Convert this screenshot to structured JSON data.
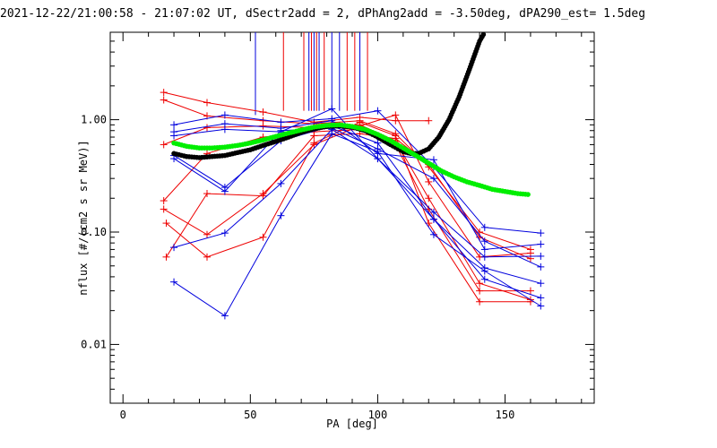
{
  "chart_data": {
    "type": "line",
    "title": "2021-12-22/21:00:58 - 21:07:02 UT, dSectr2add = 2, dPhAng2add = -3.50deg, dPA290_est=   1.5deg",
    "xlabel": "PA [deg]",
    "ylabel": "nflux [#/(cm2 s sr MeV)]",
    "xlim": [
      -5,
      185
    ],
    "ylim": [
      0.003,
      6
    ],
    "yscale": "log",
    "x_ticks": [
      0,
      50,
      100,
      150
    ],
    "x_tick_labels": [
      "0",
      "50",
      "100",
      "150"
    ],
    "y_ticks": [
      0.01,
      0.1,
      1.0
    ],
    "y_tick_labels": [
      "0.01",
      "0.10",
      "1.00"
    ],
    "grid": false,
    "colors": {
      "red": "#ee0000",
      "blue": "#0000dd",
      "black": "#000000",
      "green": "#00ee00"
    },
    "series": [
      {
        "color": "red",
        "points": [
          [
            16,
            1.75
          ],
          [
            33,
            1.42
          ],
          [
            55,
            1.17
          ],
          [
            75,
            0.95
          ],
          [
            93,
            1.05
          ],
          [
            107,
            0.98
          ],
          [
            120,
            0.98
          ]
        ]
      },
      {
        "color": "red",
        "points": [
          [
            16,
            1.5
          ],
          [
            33,
            1.08
          ],
          [
            55,
            0.98
          ],
          [
            75,
            0.92
          ],
          [
            93,
            0.98
          ],
          [
            107,
            0.75
          ],
          [
            120,
            0.38
          ],
          [
            140,
            0.1
          ],
          [
            160,
            0.07
          ]
        ]
      },
      {
        "color": "red",
        "points": [
          [
            16,
            0.6
          ],
          [
            33,
            0.85
          ],
          [
            55,
            0.88
          ],
          [
            75,
            0.85
          ],
          [
            93,
            0.9
          ],
          [
            107,
            0.65
          ],
          [
            120,
            0.2
          ],
          [
            140,
            0.035
          ],
          [
            160,
            0.025
          ]
        ]
      },
      {
        "color": "red",
        "points": [
          [
            16,
            0.19
          ],
          [
            33,
            0.5
          ],
          [
            55,
            0.7
          ],
          [
            75,
            0.78
          ],
          [
            93,
            0.82
          ],
          [
            107,
            0.6
          ],
          [
            120,
            0.16
          ],
          [
            140,
            0.03
          ],
          [
            160,
            0.03
          ]
        ]
      },
      {
        "color": "red",
        "points": [
          [
            16,
            0.16
          ],
          [
            33,
            0.095
          ],
          [
            55,
            0.22
          ],
          [
            75,
            0.6
          ],
          [
            93,
            0.88
          ],
          [
            107,
            1.1
          ],
          [
            120,
            0.28
          ],
          [
            140,
            0.06
          ],
          [
            160,
            0.065
          ]
        ]
      },
      {
        "color": "red",
        "points": [
          [
            17,
            0.12
          ],
          [
            33,
            0.06
          ],
          [
            55,
            0.09
          ],
          [
            75,
            0.62
          ],
          [
            93,
            0.95
          ],
          [
            107,
            0.72
          ],
          [
            120,
            0.12
          ],
          [
            140,
            0.024
          ],
          [
            160,
            0.024
          ]
        ]
      },
      {
        "color": "red",
        "points": [
          [
            17,
            0.06
          ],
          [
            33,
            0.22
          ],
          [
            55,
            0.21
          ],
          [
            75,
            0.72
          ],
          [
            93,
            0.75
          ],
          [
            107,
            0.68
          ],
          [
            120,
            0.4
          ],
          [
            140,
            0.09
          ],
          [
            160,
            0.058
          ]
        ]
      },
      {
        "color": "blue",
        "points": [
          [
            20,
            0.9
          ],
          [
            40,
            1.1
          ],
          [
            62,
            0.95
          ],
          [
            82,
            1.02
          ],
          [
            100,
            1.2
          ],
          [
            122,
            0.38
          ],
          [
            142,
            0.11
          ],
          [
            164,
            0.098
          ]
        ]
      },
      {
        "color": "blue",
        "points": [
          [
            20,
            0.78
          ],
          [
            40,
            0.92
          ],
          [
            62,
            0.84
          ],
          [
            82,
            0.98
          ],
          [
            100,
            0.5
          ],
          [
            122,
            0.44
          ],
          [
            142,
            0.07
          ],
          [
            164,
            0.078
          ]
        ]
      },
      {
        "color": "blue",
        "points": [
          [
            20,
            0.72
          ],
          [
            40,
            0.82
          ],
          [
            62,
            0.78
          ],
          [
            82,
            1.25
          ],
          [
            100,
            0.45
          ],
          [
            122,
            0.15
          ],
          [
            142,
            0.06
          ],
          [
            164,
            0.061
          ]
        ]
      },
      {
        "color": "blue",
        "points": [
          [
            20,
            0.45
          ],
          [
            40,
            0.23
          ],
          [
            62,
            0.8
          ],
          [
            82,
            0.84
          ],
          [
            100,
            0.55
          ],
          [
            122,
            0.3
          ],
          [
            142,
            0.083
          ],
          [
            164,
            0.049
          ]
        ]
      },
      {
        "color": "blue",
        "points": [
          [
            20,
            0.48
          ],
          [
            40,
            0.25
          ],
          [
            62,
            0.65
          ],
          [
            82,
            0.88
          ],
          [
            100,
            0.62
          ],
          [
            122,
            0.13
          ],
          [
            142,
            0.048
          ],
          [
            164,
            0.035
          ]
        ]
      },
      {
        "color": "blue",
        "points": [
          [
            20,
            0.073
          ],
          [
            40,
            0.098
          ],
          [
            62,
            0.27
          ],
          [
            82,
            0.82
          ],
          [
            100,
            0.45
          ],
          [
            122,
            0.13
          ],
          [
            142,
            0.038
          ],
          [
            164,
            0.026
          ]
        ]
      },
      {
        "color": "blue",
        "points": [
          [
            20,
            0.036
          ],
          [
            40,
            0.018
          ],
          [
            62,
            0.14
          ],
          [
            82,
            0.75
          ],
          [
            100,
            0.52
          ],
          [
            122,
            0.095
          ],
          [
            142,
            0.045
          ],
          [
            164,
            0.022
          ]
        ]
      }
    ],
    "error_bars": [
      {
        "color": "blue",
        "x": 52,
        "y_low": 1.1,
        "y_high": 6
      },
      {
        "color": "red",
        "x": 63,
        "y_low": 1.2,
        "y_high": 6
      },
      {
        "color": "red",
        "x": 71,
        "y_low": 1.2,
        "y_high": 6
      },
      {
        "color": "blue",
        "x": 73,
        "y_low": 1.2,
        "y_high": 6
      },
      {
        "color": "red",
        "x": 74,
        "y_low": 1.2,
        "y_high": 6
      },
      {
        "color": "blue",
        "x": 75,
        "y_low": 1.2,
        "y_high": 6
      },
      {
        "color": "red",
        "x": 76,
        "y_low": 1.2,
        "y_high": 6
      },
      {
        "color": "blue",
        "x": 77,
        "y_low": 1.2,
        "y_high": 6
      },
      {
        "color": "red",
        "x": 79,
        "y_low": 1.2,
        "y_high": 6
      },
      {
        "color": "blue",
        "x": 82,
        "y_low": 1.2,
        "y_high": 6
      },
      {
        "color": "blue",
        "x": 85,
        "y_low": 1.2,
        "y_high": 6
      },
      {
        "color": "red",
        "x": 88,
        "y_low": 1.2,
        "y_high": 6
      },
      {
        "color": "red",
        "x": 91,
        "y_low": 1.2,
        "y_high": 6
      },
      {
        "color": "blue",
        "x": 93,
        "y_low": 1.2,
        "y_high": 6
      },
      {
        "color": "red",
        "x": 96,
        "y_low": 1.2,
        "y_high": 6
      }
    ],
    "fit_curves": [
      {
        "color": "black",
        "x": [
          20,
          25,
          30,
          35,
          40,
          45,
          50,
          55,
          60,
          65,
          70,
          75,
          80,
          85,
          90,
          95,
          100,
          105,
          110,
          113,
          116,
          120,
          124,
          128,
          132,
          136,
          140,
          142
        ],
        "y": [
          0.5,
          0.47,
          0.46,
          0.47,
          0.48,
          0.51,
          0.54,
          0.59,
          0.64,
          0.7,
          0.77,
          0.83,
          0.87,
          0.88,
          0.86,
          0.8,
          0.7,
          0.6,
          0.52,
          0.5,
          0.5,
          0.55,
          0.7,
          1.0,
          1.6,
          2.8,
          5.0,
          6.0
        ]
      },
      {
        "color": "green",
        "x": [
          20,
          25,
          30,
          35,
          40,
          45,
          50,
          55,
          60,
          65,
          70,
          75,
          80,
          85,
          90,
          95,
          100,
          105,
          110,
          115,
          120,
          125,
          130,
          135,
          140,
          145,
          150,
          155,
          160
        ],
        "y": [
          0.62,
          0.58,
          0.56,
          0.56,
          0.57,
          0.59,
          0.62,
          0.66,
          0.71,
          0.76,
          0.81,
          0.86,
          0.89,
          0.9,
          0.87,
          0.82,
          0.74,
          0.65,
          0.56,
          0.48,
          0.41,
          0.35,
          0.31,
          0.28,
          0.26,
          0.24,
          0.23,
          0.22,
          0.215
        ]
      }
    ]
  }
}
